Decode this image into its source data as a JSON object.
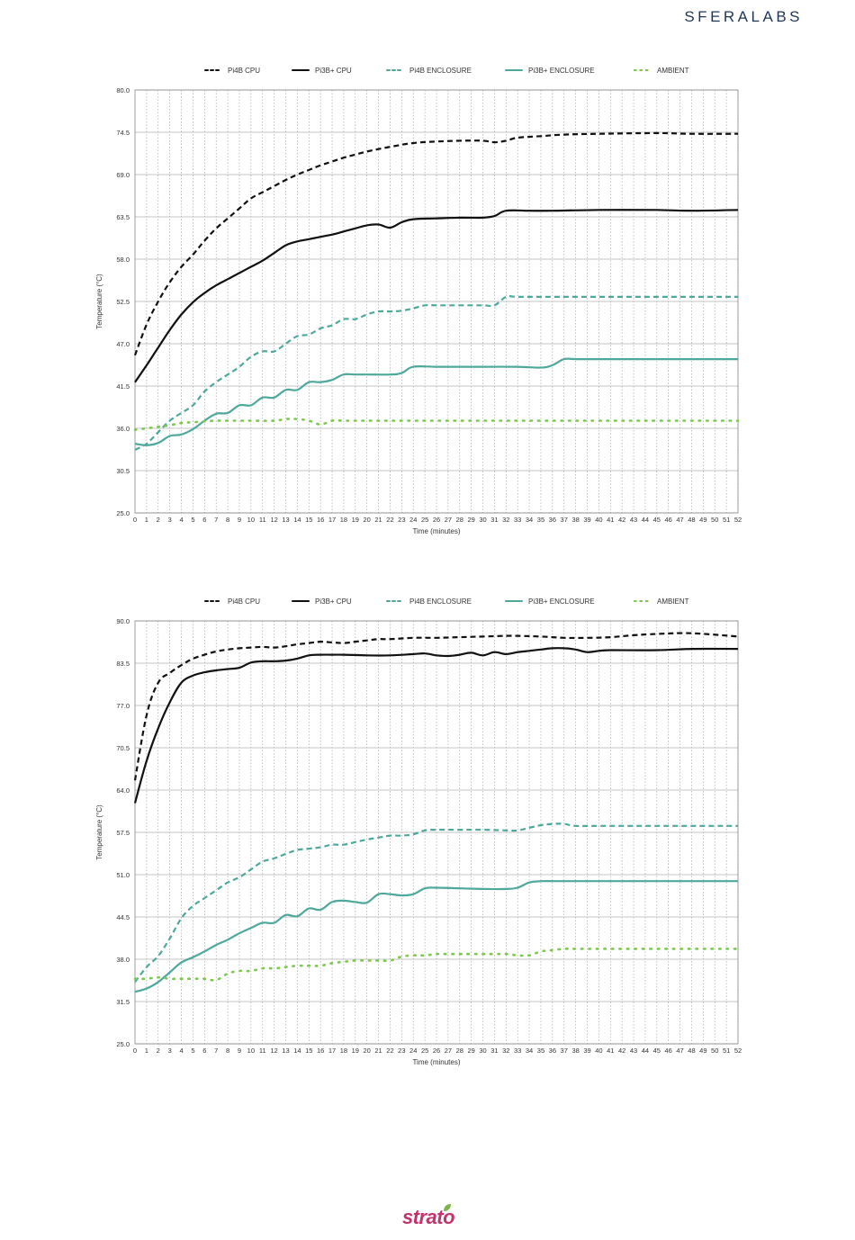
{
  "brand": {
    "name": "SFERALABS",
    "icon": "crescent-moon-icon",
    "color": "#1f3654"
  },
  "footer": {
    "name": "strato",
    "color": "#c2336b",
    "leaf_color": "#7ab648"
  },
  "styles": {
    "pi4b_cpu": {
      "color": "#111111",
      "dash": "6 4"
    },
    "pi3b_cpu": {
      "color": "#111111",
      "dash": ""
    },
    "pi4b_enc": {
      "color": "#4ea89c",
      "dash": "6 4"
    },
    "pi3b_enc": {
      "color": "#4ea89c",
      "dash": ""
    },
    "ambient": {
      "color": "#7ec850",
      "dash": "1.5 7"
    }
  },
  "chart_data": [
    {
      "type": "line",
      "title": "",
      "xlabel": "Time (minutes)",
      "ylabel": "Temperature (°C)",
      "xlim": [
        0,
        52
      ],
      "ylim": [
        25,
        80
      ],
      "yticks": [
        "25.0",
        "30.5",
        "36.0",
        "41.5",
        "47.0",
        "52.5",
        "58.0",
        "63.5",
        "69.0",
        "74.5",
        "80.0"
      ],
      "xticks": [
        "0",
        "1",
        "2",
        "3",
        "4",
        "5",
        "6",
        "7",
        "8",
        "9",
        "10",
        "11",
        "12",
        "13",
        "14",
        "15",
        "16",
        "17",
        "18",
        "19",
        "20",
        "21",
        "22",
        "23",
        "24",
        "25",
        "26",
        "27",
        "28",
        "29",
        "30",
        "31",
        "32",
        "33",
        "34",
        "35",
        "36",
        "37",
        "38",
        "39",
        "40",
        "41",
        "42",
        "43",
        "44",
        "45",
        "46",
        "47",
        "48",
        "49",
        "50",
        "51",
        "52"
      ],
      "grid": true,
      "legend_position": "top",
      "series": [
        {
          "name": "Pi4B CPU",
          "key": "pi4b_cpu",
          "x": [
            0,
            1,
            2,
            3,
            4,
            5,
            6,
            7,
            8,
            9,
            10,
            11,
            12,
            13,
            14,
            15,
            16,
            17,
            18,
            19,
            20,
            22,
            24,
            26,
            28,
            30,
            31,
            32,
            33,
            35,
            37,
            40,
            45,
            48,
            52
          ],
          "y": [
            45.5,
            49.5,
            52.5,
            55,
            57,
            58.6,
            60.4,
            62,
            63.3,
            64.6,
            65.9,
            66.7,
            67.5,
            68.3,
            69,
            69.6,
            70.2,
            70.7,
            71.2,
            71.6,
            72,
            72.6,
            73.1,
            73.3,
            73.4,
            73.4,
            73.2,
            73.4,
            73.8,
            74,
            74.2,
            74.3,
            74.4,
            74.3,
            74.3
          ]
        },
        {
          "name": "Pi3B+ CPU",
          "key": "pi3b_cpu",
          "x": [
            0,
            1,
            2,
            3,
            4,
            5,
            6,
            7,
            8,
            9,
            10,
            11,
            12,
            13,
            14,
            15,
            16,
            17,
            18,
            19,
            20,
            21,
            22,
            23,
            24,
            26,
            28,
            30,
            31,
            32,
            34,
            36,
            40,
            45,
            48,
            52
          ],
          "y": [
            42,
            44.2,
            46.5,
            48.8,
            50.8,
            52.4,
            53.6,
            54.6,
            55.4,
            56.2,
            57,
            57.8,
            58.8,
            59.8,
            60.3,
            60.6,
            60.9,
            61.2,
            61.6,
            62,
            62.4,
            62.5,
            62.1,
            62.8,
            63.2,
            63.3,
            63.4,
            63.4,
            63.6,
            64.3,
            64.3,
            64.3,
            64.4,
            64.4,
            64.3,
            64.4
          ]
        },
        {
          "name": "Pi4B ENCLOSURE",
          "key": "pi4b_enc",
          "x": [
            0,
            1,
            2,
            3,
            4,
            5,
            6,
            7,
            8,
            9,
            10,
            11,
            12,
            13,
            14,
            15,
            16,
            17,
            18,
            19,
            20,
            21,
            22,
            23,
            24,
            25,
            26,
            28,
            30,
            31,
            32,
            33,
            35,
            40,
            45,
            52
          ],
          "y": [
            33.2,
            34,
            35.5,
            37,
            38,
            39,
            40.8,
            42,
            43,
            44,
            45.3,
            46,
            46,
            47,
            48,
            48.2,
            49,
            49.4,
            50.2,
            50.2,
            50.8,
            51.2,
            51.2,
            51.3,
            51.6,
            52,
            52,
            52,
            52,
            52,
            53.1,
            53.1,
            53.1,
            53.1,
            53.1,
            53.1
          ]
        },
        {
          "name": "Pi3B+ ENCLOSURE",
          "key": "pi3b_enc",
          "x": [
            0,
            1,
            2,
            3,
            4,
            5,
            6,
            7,
            8,
            9,
            10,
            11,
            12,
            13,
            14,
            15,
            16,
            17,
            18,
            19,
            20,
            22,
            23,
            24,
            26,
            28,
            30,
            33,
            35,
            36,
            37,
            38,
            40,
            45,
            52
          ],
          "y": [
            34,
            33.8,
            34.1,
            35,
            35.2,
            35.9,
            37,
            37.9,
            38,
            39,
            39,
            40,
            40,
            41,
            41,
            42,
            42,
            42.3,
            43,
            43,
            43,
            43,
            43.2,
            44,
            44,
            44,
            44,
            44,
            43.9,
            44.2,
            45,
            45,
            45,
            45,
            45
          ]
        },
        {
          "name": "AMBIENT",
          "key": "ambient",
          "x": [
            0,
            1,
            2,
            3,
            4,
            5,
            6,
            7,
            8,
            10,
            12,
            13,
            14,
            15,
            16,
            17,
            18,
            20,
            25,
            30,
            35,
            40,
            45,
            52
          ],
          "y": [
            35.8,
            36,
            36.2,
            36.4,
            36.7,
            36.8,
            36.9,
            37,
            37,
            37,
            37,
            37.2,
            37.2,
            37,
            36.5,
            37,
            37,
            37,
            37,
            37,
            37,
            37,
            37,
            37
          ]
        }
      ]
    },
    {
      "type": "line",
      "title": "",
      "xlabel": "Time (minutes)",
      "ylabel": "Temperature (°C)",
      "xlim": [
        0,
        52
      ],
      "ylim": [
        25,
        90
      ],
      "yticks": [
        "25.0",
        "31.5",
        "38.0",
        "44.5",
        "51.0",
        "57.5",
        "64.0",
        "70.5",
        "77.0",
        "83.5",
        "90.0"
      ],
      "xticks": [
        "0",
        "1",
        "2",
        "3",
        "4",
        "5",
        "6",
        "7",
        "8",
        "9",
        "10",
        "11",
        "12",
        "13",
        "14",
        "15",
        "16",
        "17",
        "18",
        "19",
        "20",
        "21",
        "22",
        "23",
        "24",
        "25",
        "26",
        "27",
        "28",
        "29",
        "30",
        "31",
        "32",
        "33",
        "34",
        "35",
        "36",
        "37",
        "38",
        "39",
        "40",
        "41",
        "42",
        "43",
        "44",
        "45",
        "46",
        "47",
        "48",
        "49",
        "50",
        "51",
        "52"
      ],
      "grid": true,
      "legend_position": "top",
      "series": [
        {
          "name": "Pi4B CPU",
          "key": "pi4b_cpu",
          "x": [
            0,
            1,
            2,
            3,
            4,
            5,
            6,
            7,
            8,
            9,
            10,
            11,
            12,
            13,
            14,
            15,
            16,
            17,
            18,
            19,
            20,
            21,
            22,
            24,
            26,
            28,
            30,
            32,
            33,
            35,
            37,
            39,
            41,
            43,
            45,
            48,
            52
          ],
          "y": [
            65.5,
            75.5,
            80.5,
            82,
            83.2,
            84.2,
            84.8,
            85.3,
            85.6,
            85.8,
            85.9,
            86,
            85.9,
            86.1,
            86.4,
            86.6,
            86.8,
            86.7,
            86.6,
            86.8,
            87,
            87.2,
            87.2,
            87.4,
            87.4,
            87.5,
            87.6,
            87.7,
            87.7,
            87.6,
            87.4,
            87.4,
            87.5,
            87.8,
            88,
            88.1,
            87.6
          ]
        },
        {
          "name": "Pi3B+ CPU",
          "key": "pi3b_cpu",
          "x": [
            0,
            1,
            2,
            3,
            4,
            5,
            6,
            7,
            8,
            9,
            10,
            11,
            12,
            13,
            14,
            15,
            16,
            17,
            18,
            20,
            22,
            24,
            25,
            26,
            27,
            28,
            29,
            30,
            31,
            32,
            33,
            34,
            35,
            36,
            37,
            38,
            39,
            40,
            41,
            45,
            48,
            52
          ],
          "y": [
            62,
            68.5,
            73.5,
            77.5,
            80.5,
            81.6,
            82.1,
            82.4,
            82.6,
            82.8,
            83.6,
            83.8,
            83.8,
            83.9,
            84.2,
            84.7,
            84.8,
            84.8,
            84.8,
            84.7,
            84.7,
            84.9,
            85,
            84.7,
            84.6,
            84.8,
            85.1,
            84.7,
            85.2,
            84.9,
            85.2,
            85.4,
            85.6,
            85.8,
            85.8,
            85.6,
            85.2,
            85.4,
            85.5,
            85.5,
            85.7,
            85.7
          ]
        },
        {
          "name": "Pi4B ENCLOSURE",
          "key": "pi4b_enc",
          "x": [
            0,
            1,
            2,
            3,
            4,
            5,
            6,
            7,
            8,
            9,
            10,
            11,
            12,
            13,
            14,
            15,
            16,
            17,
            18,
            19,
            20,
            21,
            22,
            23,
            24,
            25,
            26,
            28,
            30,
            32,
            33,
            34,
            35,
            36,
            37,
            38,
            40,
            45,
            52
          ],
          "y": [
            34.5,
            36.8,
            38.5,
            41.2,
            44.3,
            46.2,
            47.4,
            48.6,
            49.8,
            50.6,
            51.8,
            53,
            53.5,
            54.2,
            54.8,
            55,
            55.2,
            55.6,
            55.6,
            56,
            56.4,
            56.7,
            57,
            57,
            57.2,
            57.8,
            57.9,
            57.9,
            57.9,
            57.8,
            57.8,
            58.2,
            58.6,
            58.8,
            58.8,
            58.5,
            58.5,
            58.5,
            58.5
          ]
        },
        {
          "name": "Pi3B+ ENCLOSURE",
          "key": "pi3b_enc",
          "x": [
            0,
            1,
            2,
            3,
            4,
            5,
            6,
            7,
            8,
            9,
            10,
            11,
            12,
            13,
            14,
            15,
            16,
            17,
            18,
            19,
            20,
            21,
            22,
            23,
            24,
            25,
            26,
            28,
            30,
            32,
            33,
            34,
            35,
            36,
            37,
            40,
            45,
            52
          ],
          "y": [
            33,
            33.5,
            34.5,
            36,
            37.5,
            38.3,
            39.2,
            40.2,
            41,
            42,
            42.8,
            43.6,
            43.6,
            44.8,
            44.6,
            45.8,
            45.6,
            46.8,
            47,
            46.8,
            46.7,
            48,
            48,
            47.8,
            48,
            48.9,
            49,
            48.9,
            48.8,
            48.8,
            49,
            49.8,
            50,
            50,
            50,
            50,
            50,
            50
          ]
        },
        {
          "name": "AMBIENT",
          "key": "ambient",
          "x": [
            0,
            1,
            2,
            3,
            4,
            5,
            6,
            7,
            8,
            9,
            10,
            11,
            12,
            13,
            14,
            15,
            16,
            17,
            18,
            19,
            20,
            21,
            22,
            23,
            24,
            25,
            26,
            27,
            28,
            29,
            30,
            31,
            32,
            33,
            34,
            35,
            36,
            37,
            38,
            39,
            40,
            45,
            52
          ],
          "y": [
            35,
            35,
            35.2,
            35,
            35,
            35,
            35,
            34.8,
            35.8,
            36.2,
            36.2,
            36.6,
            36.6,
            36.8,
            37,
            37,
            37,
            37.4,
            37.6,
            37.8,
            37.8,
            37.8,
            37.8,
            38.4,
            38.6,
            38.6,
            38.8,
            38.8,
            38.8,
            38.8,
            38.8,
            38.8,
            38.8,
            38.6,
            38.6,
            39.2,
            39.4,
            39.6,
            39.6,
            39.6,
            39.6,
            39.6,
            39.6
          ]
        }
      ]
    }
  ]
}
